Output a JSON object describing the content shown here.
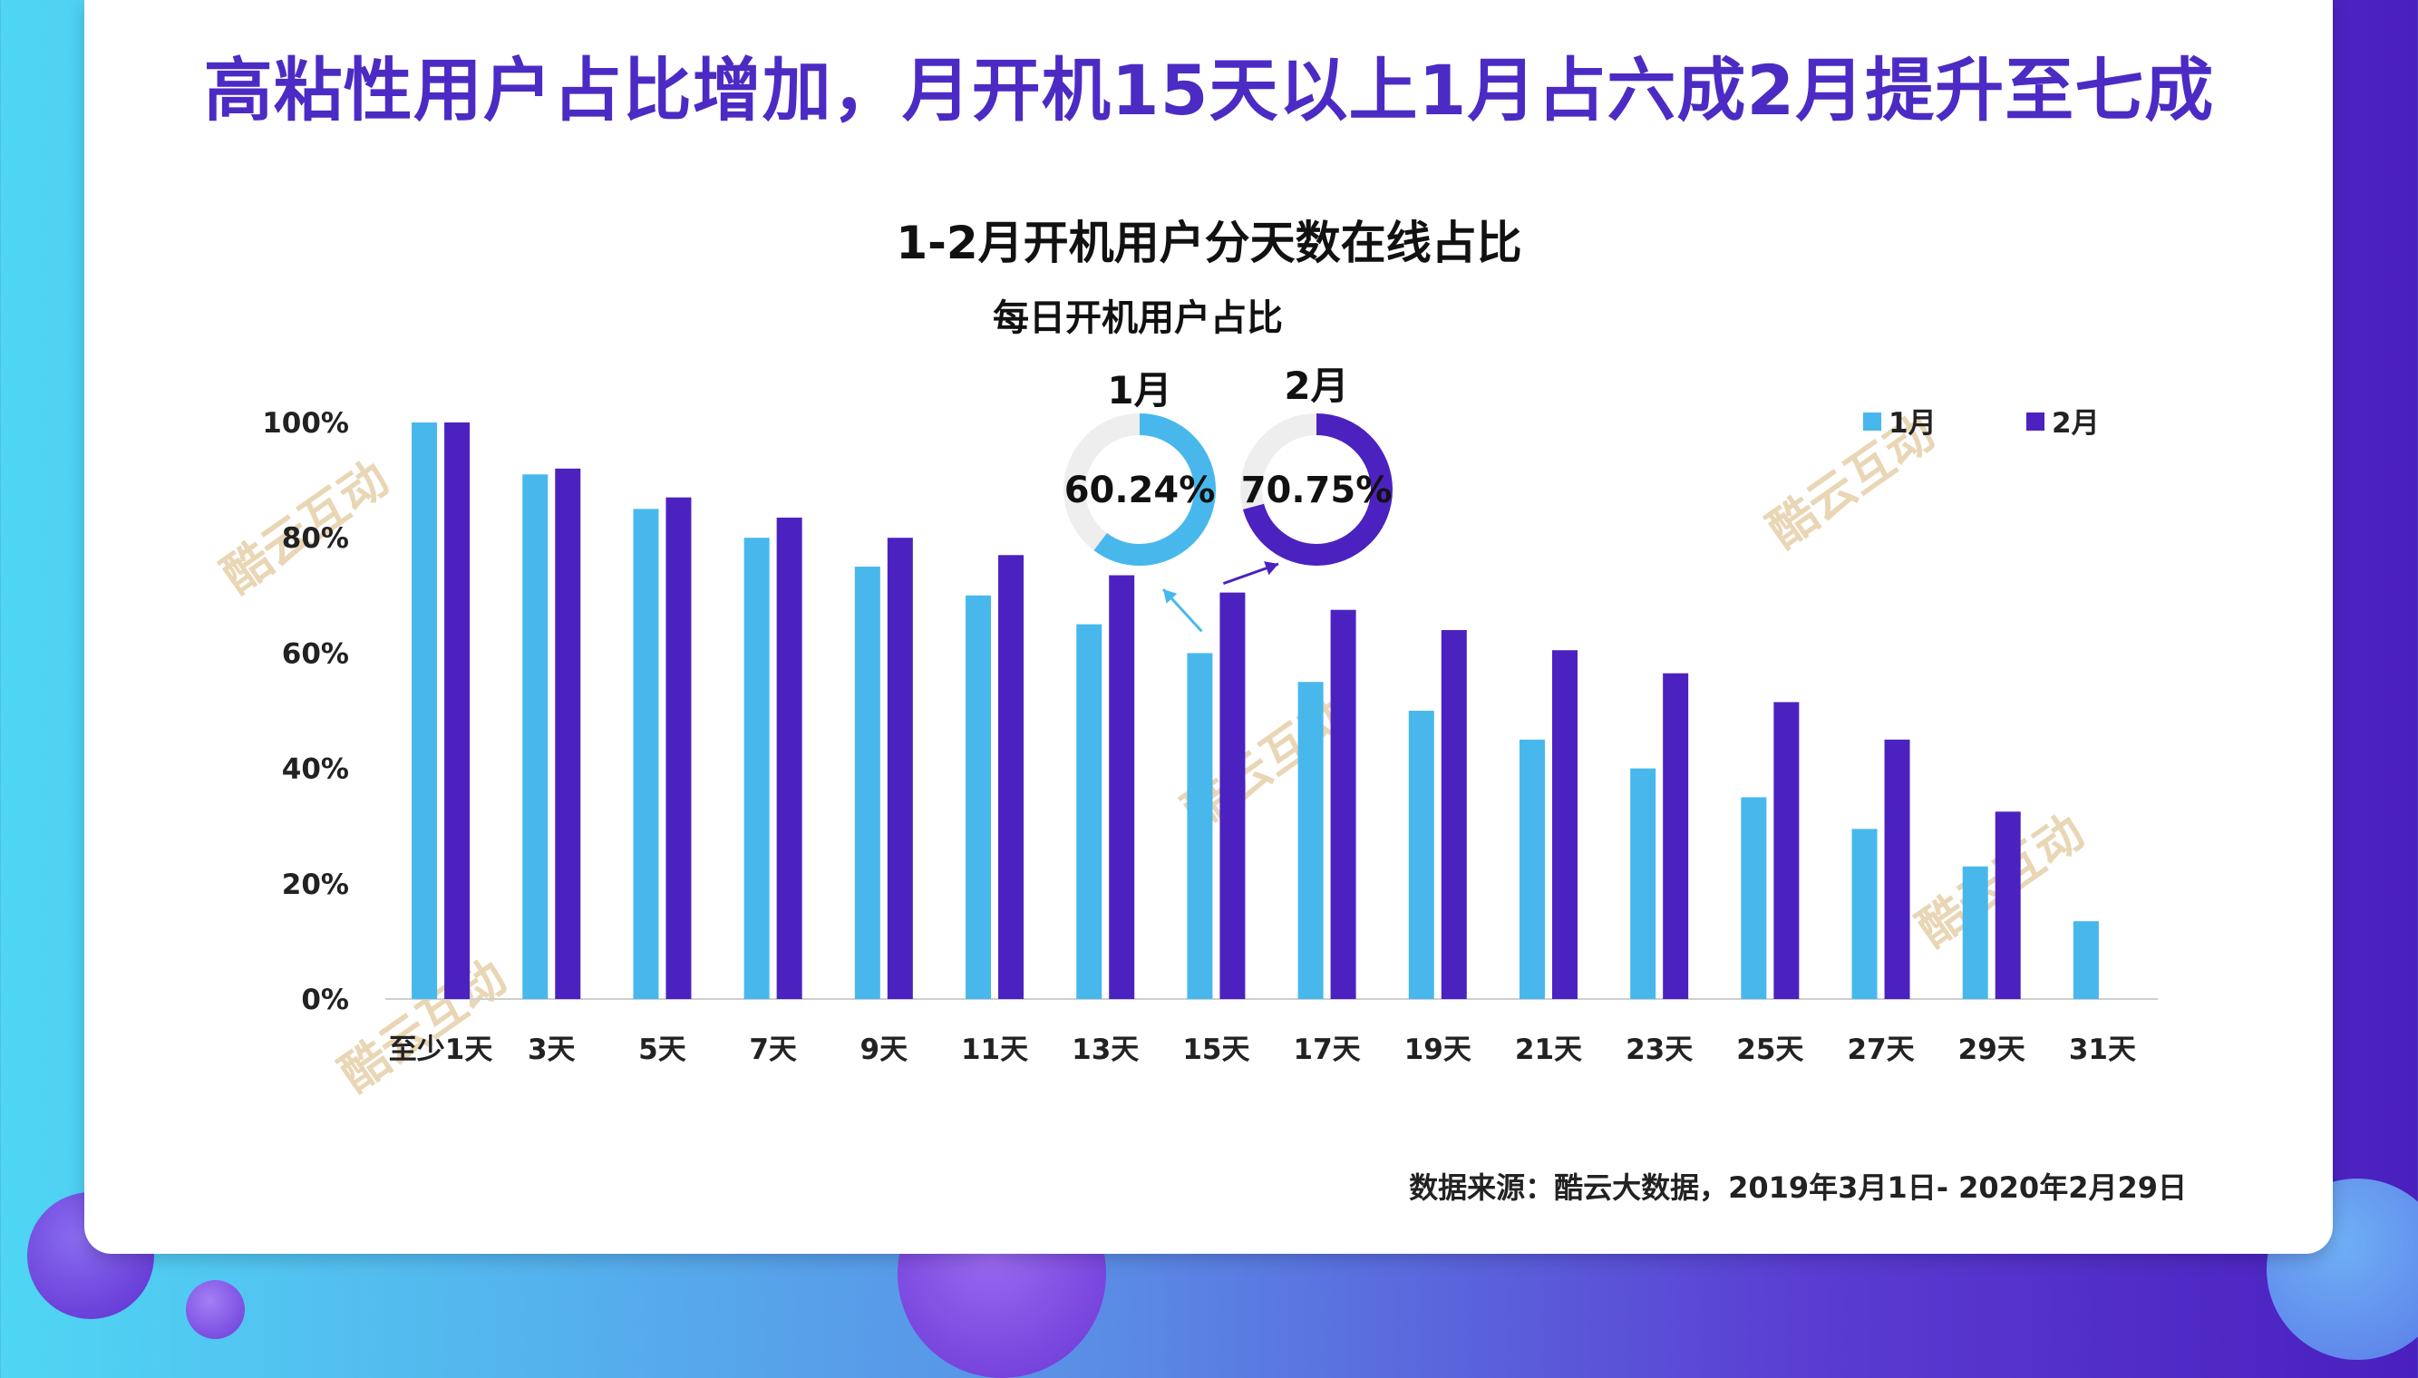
{
  "headline": "高粘性用户占比增加，月开机15天以上1月占六成2月提升至七成",
  "source": "数据来源：酷云大数据，2019年3月1日- 2020年2月29日",
  "watermark": "酷云互动",
  "colors": {
    "jan": "#48b8ec",
    "feb": "#4b22c0",
    "headline": "#4b2bc4",
    "donut_track": "#eeeeee"
  },
  "chart_data": {
    "type": "bar",
    "title": "1-2月开机用户分天数在线占比",
    "categories": [
      "至少1天",
      "3天",
      "5天",
      "7天",
      "9天",
      "11天",
      "13天",
      "15天",
      "17天",
      "19天",
      "21天",
      "23天",
      "25天",
      "27天",
      "29天",
      "31天"
    ],
    "y_ticks": [
      "0%",
      "20%",
      "40%",
      "60%",
      "80%",
      "100%"
    ],
    "ylim": [
      0,
      100
    ],
    "series": [
      {
        "name": "1月",
        "values": [
          100,
          91,
          85,
          80,
          75,
          70,
          65,
          60,
          55,
          50,
          45,
          40,
          35,
          29.5,
          23,
          13.5
        ]
      },
      {
        "name": "2月",
        "values": [
          100,
          92,
          87,
          83.5,
          80,
          77,
          73.5,
          70.5,
          67.5,
          64,
          60.5,
          56.5,
          51.5,
          45,
          32.5,
          null
        ]
      }
    ],
    "legend_position": "top-right",
    "inset": {
      "title": "每日开机用户占比",
      "donuts": [
        {
          "label": "1月",
          "value": 60.24,
          "text": "60.24%"
        },
        {
          "label": "2月",
          "value": 70.75,
          "text": "70.75%"
        }
      ]
    }
  }
}
